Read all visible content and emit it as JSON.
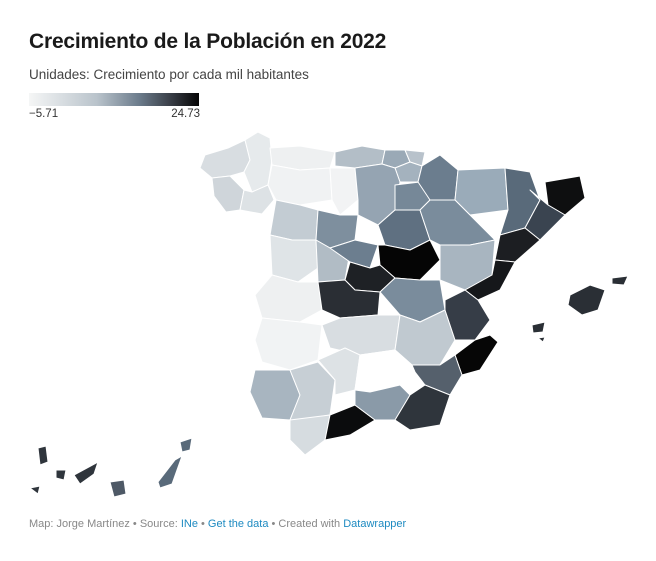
{
  "header": {
    "title": "Crecimiento de la Población en 2022",
    "subtitle": "Unidades: Crecimiento por cada mil habitantes"
  },
  "legend": {
    "min_label": "−5.71",
    "max_label": "24.73",
    "color_low": "#f5f6f6",
    "color_high": "#050505"
  },
  "footer": {
    "map_credit": "Map: Jorge Martínez",
    "separator": " • ",
    "source_label": "Source: ",
    "source_name": "INe",
    "get_data": "Get the data",
    "created_with": "Created with ",
    "tool": "Datawrapper"
  }
}
